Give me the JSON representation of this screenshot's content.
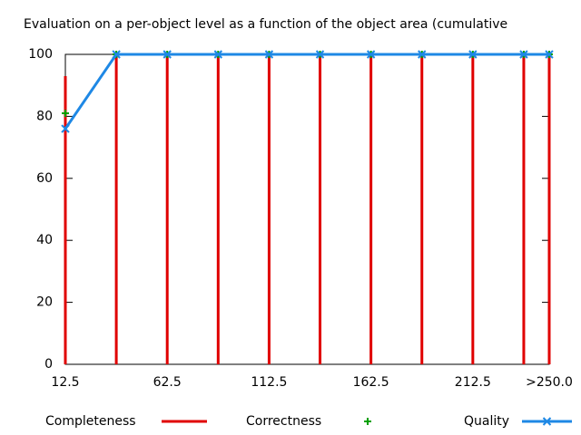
{
  "chart_data": {
    "type": "line",
    "title": "Evaluation on a per-object level as a function of the object area (cumulative",
    "x": [
      12.5,
      37.5,
      62.5,
      87.5,
      112.5,
      137.5,
      162.5,
      187.5,
      212.5,
      237.5,
      250
    ],
    "series": [
      {
        "name": "Completeness",
        "color": "#e00000",
        "style": "impulses",
        "values": [
          93,
          100,
          100,
          100,
          100,
          100,
          100,
          100,
          100,
          100,
          100
        ]
      },
      {
        "name": "Correctness",
        "color": "#00a000",
        "style": "points",
        "values": [
          81,
          100,
          100,
          100,
          100,
          100,
          100,
          100,
          100,
          100,
          100
        ]
      },
      {
        "name": "Quality",
        "color": "#1e88e5",
        "style": "linespoints",
        "values": [
          76,
          100,
          100,
          100,
          100,
          100,
          100,
          100,
          100,
          100,
          100
        ]
      }
    ],
    "xlim": [
      12.5,
      250
    ],
    "xticks": [
      12.5,
      62.5,
      112.5,
      162.5,
      212.5,
      {
        "value": 250,
        "label": ">250.0"
      }
    ],
    "ylim": [
      0,
      100
    ],
    "yticks": [
      0,
      20,
      40,
      60,
      80,
      100
    ]
  }
}
